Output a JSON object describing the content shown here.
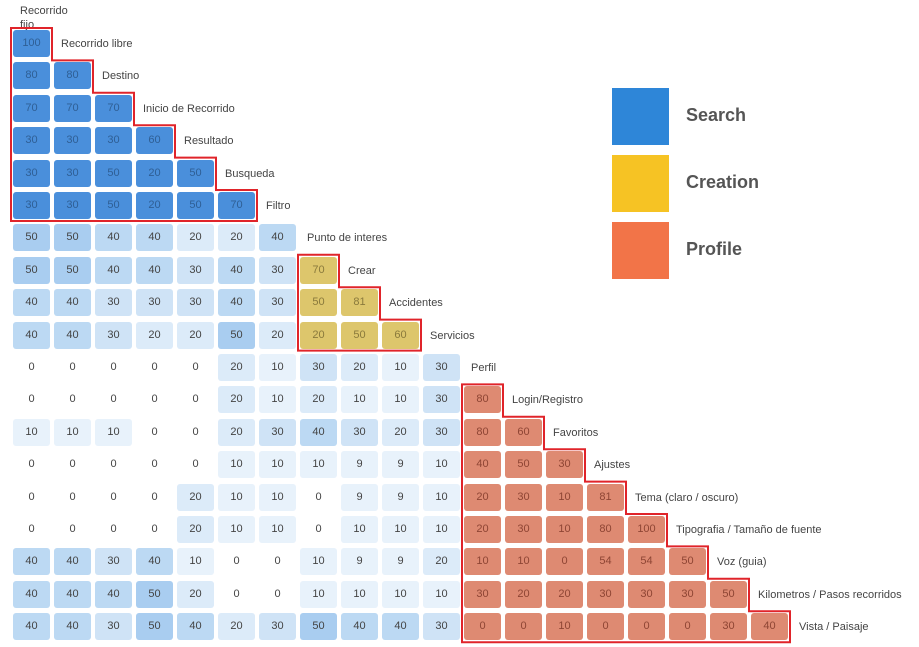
{
  "chart_data": {
    "type": "heatmap",
    "title": "",
    "top_label": "Recorrido fijo",
    "row_labels": [
      "Recorrido libre",
      "Destino",
      "Inicio de Recorrido",
      "Resultado",
      "Busqueda",
      "Filtro",
      "Punto de interes",
      "Crear",
      "Accidentes",
      "Servicios",
      "Perfil",
      "Login/Registro",
      "Favoritos",
      "Ajustes",
      "Tema (claro / oscuro)",
      "Tipografia / Tamaño de fuente",
      "Voz (guia)",
      "Kilometros / Pasos recorridos",
      "Vista / Paisaje"
    ],
    "values": [
      [
        100
      ],
      [
        80,
        80
      ],
      [
        70,
        70,
        70
      ],
      [
        30,
        30,
        30,
        60
      ],
      [
        30,
        30,
        50,
        20,
        50
      ],
      [
        30,
        30,
        50,
        20,
        50,
        70
      ],
      [
        50,
        50,
        40,
        40,
        20,
        20,
        40
      ],
      [
        50,
        50,
        40,
        40,
        30,
        40,
        30,
        70
      ],
      [
        40,
        40,
        30,
        30,
        30,
        40,
        30,
        50,
        81
      ],
      [
        40,
        40,
        30,
        20,
        20,
        50,
        20,
        20,
        50,
        60
      ],
      [
        0,
        0,
        0,
        0,
        0,
        20,
        10,
        30,
        20,
        10,
        30
      ],
      [
        0,
        0,
        0,
        0,
        0,
        20,
        10,
        20,
        10,
        10,
        30,
        80
      ],
      [
        10,
        10,
        10,
        0,
        0,
        20,
        30,
        40,
        30,
        20,
        30,
        80,
        60
      ],
      [
        0,
        0,
        0,
        0,
        0,
        10,
        10,
        10,
        9,
        9,
        10,
        40,
        50,
        30
      ],
      [
        0,
        0,
        0,
        0,
        20,
        10,
        10,
        0,
        9,
        9,
        10,
        20,
        30,
        10,
        81
      ],
      [
        0,
        0,
        0,
        0,
        20,
        10,
        10,
        0,
        10,
        10,
        10,
        20,
        30,
        10,
        80,
        100
      ],
      [
        40,
        40,
        30,
        40,
        10,
        0,
        0,
        10,
        9,
        9,
        20,
        10,
        10,
        0,
        54,
        54,
        50
      ],
      [
        40,
        40,
        40,
        50,
        20,
        0,
        0,
        10,
        10,
        10,
        10,
        30,
        20,
        20,
        30,
        30,
        30,
        50
      ],
      [
        40,
        40,
        30,
        50,
        40,
        20,
        30,
        50,
        40,
        40,
        30,
        0,
        0,
        10,
        0,
        0,
        0,
        30,
        40
      ]
    ],
    "clusters": [
      {
        "name": "Search",
        "rows": [
          0,
          5
        ],
        "color": "#2e86d8",
        "cell_color": "#4a8fdb"
      },
      {
        "name": "Creation",
        "rows": [
          7,
          9
        ],
        "color": "#f6c324",
        "cell_color": "#ddc66c"
      },
      {
        "name": "Profile",
        "rows": [
          11,
          18
        ],
        "color": "#f27448",
        "cell_color": "#de8a72"
      }
    ],
    "legend": {
      "position": "right",
      "items": [
        {
          "label": "Search",
          "color": "#2e86d8"
        },
        {
          "label": "Creation",
          "color": "#f6c324"
        },
        {
          "label": "Profile",
          "color": "#f27448"
        }
      ]
    }
  }
}
